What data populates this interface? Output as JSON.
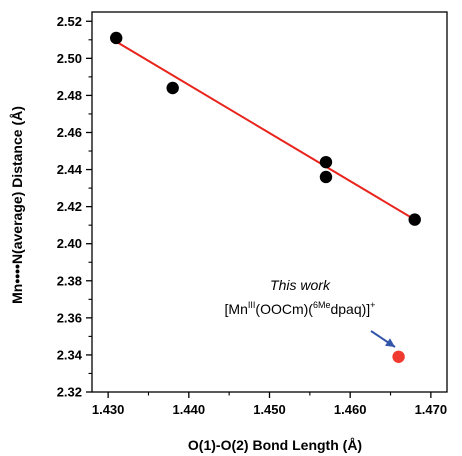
{
  "chart_data": {
    "type": "scatter",
    "xlabel": "O(1)-O(2) Bond Length (Å)",
    "ylabel": "Mn••••N(average) Distance (Å)",
    "xlim": [
      1.428,
      1.472
    ],
    "ylim": [
      2.32,
      2.525
    ],
    "x_ticks": [
      "1.430",
      "1.440",
      "1.450",
      "1.460",
      "1.470"
    ],
    "y_ticks": [
      "2.32",
      "2.34",
      "2.36",
      "2.38",
      "2.40",
      "2.42",
      "2.44",
      "2.46",
      "2.48",
      "2.50",
      "2.52"
    ],
    "series": [
      {
        "color": "#000000",
        "points": [
          {
            "x": 1.431,
            "y": 2.511
          },
          {
            "x": 1.438,
            "y": 2.484
          },
          {
            "x": 1.457,
            "y": 2.444
          },
          {
            "x": 1.457,
            "y": 2.436
          },
          {
            "x": 1.468,
            "y": 2.413
          }
        ]
      },
      {
        "color": "#f03a30",
        "points": [
          {
            "x": 1.466,
            "y": 2.339
          }
        ]
      }
    ],
    "fit_line": {
      "color": "#e8241c",
      "x": [
        1.431,
        1.468
      ],
      "y": [
        2.509,
        2.413
      ]
    },
    "annotation": {
      "title": "This work",
      "formula_parts": [
        "[Mn",
        "III",
        "(OOCm)(",
        "6Me",
        "dpaq)]",
        "+"
      ],
      "arrow_color": "#3355aa"
    },
    "grid": false,
    "legend": "none"
  }
}
